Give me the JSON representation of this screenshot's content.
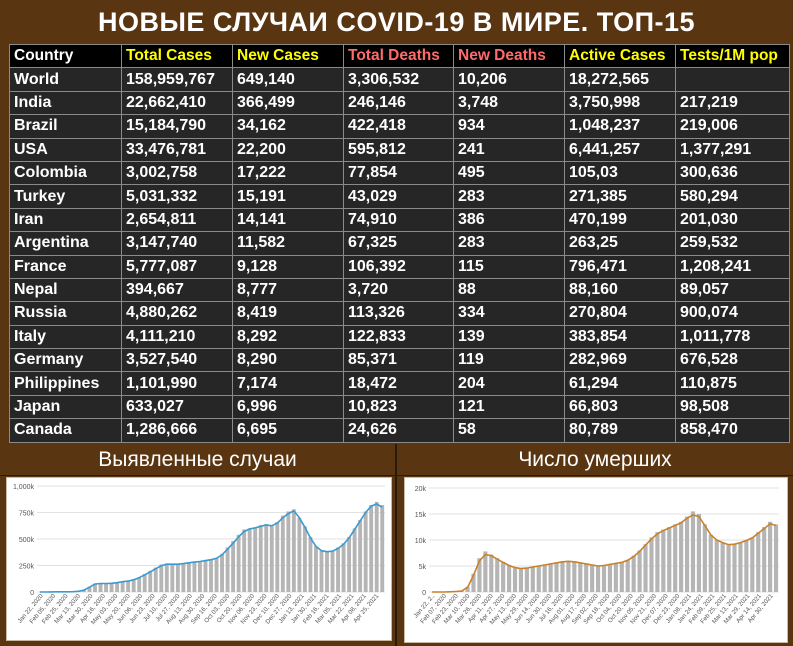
{
  "title": "НОВЫЕ СЛУЧАИ COVID-19 В МИРЕ. ТОП-15",
  "colors": {
    "background": "#5a3512",
    "total_cases": "#ffff00",
    "new_cases": "#ffff00",
    "total_deaths": "#ff6b6b",
    "new_deaths": "#ff6b6b",
    "active_cases": "#ffff00",
    "tests": "#ffff00",
    "cases_line": "#3a9ad0",
    "deaths_line": "#c8822a",
    "bars": "#b5b5b5"
  },
  "table": {
    "headers": [
      "Country",
      "Total Cases",
      "New Cases",
      "Total Deaths",
      "New Deaths",
      "Active Cases",
      "Tests/1M pop"
    ],
    "rows": [
      [
        "World",
        "158,959,767",
        "649,140",
        "3,306,532",
        "10,206",
        "18,272,565",
        ""
      ],
      [
        "India",
        "22,662,410",
        "366,499",
        "246,146",
        "3,748",
        "3,750,998",
        "217,219"
      ],
      [
        "Brazil",
        "15,184,790",
        "34,162",
        "422,418",
        "934",
        "1,048,237",
        "219,006"
      ],
      [
        "USA",
        "33,476,781",
        "22,200",
        "595,812",
        "241",
        "6,441,257",
        "1,377,291"
      ],
      [
        "Colombia",
        "3,002,758",
        "17,222",
        "77,854",
        "495",
        "105,03",
        "300,636"
      ],
      [
        "Turkey",
        "5,031,332",
        "15,191",
        "43,029",
        "283",
        "271,385",
        "580,294"
      ],
      [
        "Iran",
        "2,654,811",
        "14,141",
        "74,910",
        "386",
        "470,199",
        "201,030"
      ],
      [
        "Argentina",
        "3,147,740",
        "11,582",
        "67,325",
        "283",
        "263,25",
        "259,532"
      ],
      [
        "France",
        "5,777,087",
        "9,128",
        "106,392",
        "115",
        "796,471",
        "1,208,241"
      ],
      [
        "Nepal",
        "394,667",
        "8,777",
        "3,720",
        "88",
        "88,160",
        "89,057"
      ],
      [
        "Russia",
        "4,880,262",
        "8,419",
        "113,326",
        "334",
        "270,804",
        "900,074"
      ],
      [
        "Italy",
        "4,111,210",
        "8,292",
        "122,833",
        "139",
        "383,854",
        "1,011,778"
      ],
      [
        "Germany",
        "3,527,540",
        "8,290",
        "85,371",
        "119",
        "282,969",
        "676,528"
      ],
      [
        "Philippines",
        "1,101,990",
        "7,174",
        "18,472",
        "204",
        "61,294",
        "110,875"
      ],
      [
        "Japan",
        "633,027",
        "6,996",
        "10,823",
        "121",
        "66,803",
        "98,508"
      ],
      [
        "Canada",
        "1,286,666",
        "6,695",
        "24,626",
        "58",
        "80,789",
        "858,470"
      ]
    ]
  },
  "chart_data": [
    {
      "type": "bar",
      "title": "Выявленные случаи",
      "yticks": [
        "0",
        "250k",
        "500k",
        "750k",
        "1,000k"
      ],
      "ylim": [
        0,
        1000000
      ],
      "xticks": [
        "Jan 22, 2020",
        "Feb 05, 2020",
        "Feb 25, 2020",
        "Mar 13, 2020",
        "Mar 30, 2020",
        "Apr 16, 2020",
        "May 03, 2020",
        "May 20, 2020",
        "Jun 06, 2020",
        "Jun 23, 2020",
        "Jul 10, 2020",
        "Jul 27, 2020",
        "Aug 13, 2020",
        "Aug 30, 2020",
        "Sep 16, 2020",
        "Oct 03, 2020",
        "Oct 20, 2020",
        "Nov 06, 2020",
        "Nov 23, 2020",
        "Dec 10, 2020",
        "Dec 27, 2020",
        "Jan 13, 2021",
        "Jan 30, 2021",
        "Feb 16, 2021",
        "Mar 05, 2021",
        "Mar 22, 2021",
        "Apr 08, 2021",
        "Apr 25, 2021"
      ],
      "series": [
        {
          "type": "bar",
          "values": [
            0,
            0,
            2000,
            3000,
            2500,
            2000,
            3000,
            8000,
            20000,
            50000,
            80000,
            85000,
            80000,
            82000,
            90000,
            100000,
            105000,
            120000,
            140000,
            170000,
            200000,
            230000,
            260000,
            270000,
            265000,
            260000,
            270000,
            280000,
            285000,
            290000,
            300000,
            310000,
            320000,
            360000,
            420000,
            480000,
            540000,
            590000,
            600000,
            610000,
            630000,
            640000,
            620000,
            660000,
            720000,
            760000,
            780000,
            700000,
            620000,
            520000,
            430000,
            390000,
            380000,
            390000,
            420000,
            460000,
            520000,
            600000,
            680000,
            760000,
            820000,
            850000,
            820000
          ]
        },
        {
          "type": "line",
          "values": [
            0,
            0,
            1000,
            2000,
            2000,
            2000,
            3000,
            7000,
            18000,
            45000,
            75000,
            80000,
            80000,
            82000,
            88000,
            97000,
            103000,
            115000,
            135000,
            162000,
            190000,
            220000,
            248000,
            262000,
            262000,
            262000,
            268000,
            275000,
            282000,
            288000,
            296000,
            305000,
            318000,
            350000,
            405000,
            460000,
            520000,
            570000,
            595000,
            605000,
            620000,
            632000,
            625000,
            650000,
            700000,
            740000,
            765000,
            700000,
            610000,
            510000,
            430000,
            390000,
            380000,
            385000,
            410000,
            450000,
            510000,
            590000,
            670000,
            750000,
            810000,
            830000,
            800000
          ]
        }
      ]
    },
    {
      "type": "bar",
      "title": "Число умерших",
      "yticks": [
        "0",
        "5k",
        "10k",
        "15k",
        "20k"
      ],
      "ylim": [
        0,
        20000
      ],
      "xticks": [
        "Jan 22, 2..",
        "Feb 07, 2020",
        "Feb 23, 2020",
        "Mar 10, 2020",
        "Mar 26, 2020",
        "Apr 11, 2020",
        "Apr 27, 2020",
        "May 13, 2020",
        "May 29, 2020",
        "Jun 14, 2020",
        "Jun 30, 2020",
        "Jul 16, 2020",
        "Aug 01, 2020",
        "Aug 17, 2020",
        "Sep 02, 2020",
        "Sep 18, 2020",
        "Oct 04, 2020",
        "Oct 20, 2020",
        "Nov 05, 2020",
        "Nov 21, 2020",
        "Dec 07, 2020",
        "Dec 23, 2020",
        "Jan 08, 2021",
        "Jan 24, 2021",
        "Feb 09, 2021",
        "Feb 25, 2021",
        "Mar 13, 2021",
        "Mar 29, 2021",
        "Apr 14, 2021",
        "Apr 30, 2021"
      ],
      "series": [
        {
          "type": "bar",
          "values": [
            0,
            0,
            0,
            50,
            100,
            200,
            1000,
            3500,
            6500,
            7800,
            7200,
            6500,
            5800,
            5200,
            4800,
            4600,
            4700,
            4900,
            5100,
            5300,
            5500,
            5700,
            5900,
            6000,
            5900,
            5700,
            5500,
            5300,
            5100,
            5200,
            5400,
            5600,
            5800,
            6200,
            7000,
            8000,
            9200,
            10500,
            11500,
            12000,
            12500,
            13000,
            13500,
            14500,
            15500,
            15000,
            13000,
            11000,
            10000,
            9500,
            9000,
            9200,
            9500,
            10000,
            10500,
            11500,
            12500,
            13500,
            13000
          ]
        },
        {
          "type": "line",
          "values": [
            0,
            0,
            0,
            40,
            90,
            180,
            900,
            3200,
            6000,
            7200,
            7000,
            6300,
            5700,
            5100,
            4700,
            4500,
            4600,
            4800,
            5000,
            5200,
            5400,
            5600,
            5800,
            5900,
            5800,
            5600,
            5400,
            5200,
            5000,
            5100,
            5300,
            5500,
            5700,
            6100,
            6800,
            7800,
            9000,
            10200,
            11200,
            11800,
            12300,
            12800,
            13300,
            14200,
            14800,
            14500,
            12800,
            11000,
            10000,
            9500,
            9100,
            9200,
            9500,
            9900,
            10400,
            11300,
            12200,
            13100,
            12800
          ]
        }
      ]
    }
  ]
}
